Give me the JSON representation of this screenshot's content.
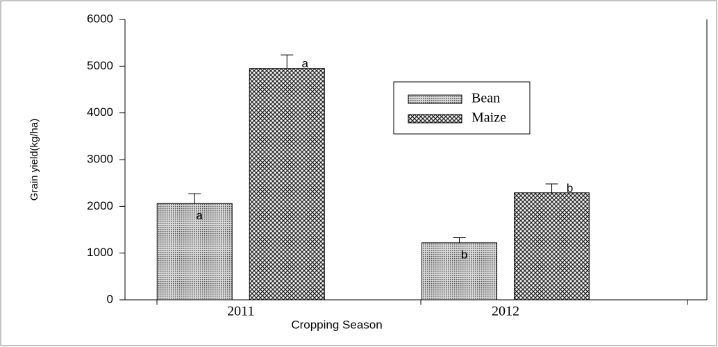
{
  "chart_data": {
    "type": "bar",
    "x_label": "Cropping Season",
    "y_label": "Grain yield(kg/ha)",
    "categories": [
      "2011",
      "2012"
    ],
    "series": [
      {
        "name": "Bean",
        "color": "#9a9a9a",
        "values": [
          2060,
          1220
        ],
        "errors": [
          210,
          110
        ],
        "letters": [
          "a",
          "b"
        ]
      },
      {
        "name": "Maize",
        "color": "#333333",
        "values": [
          4950,
          2290
        ],
        "errors": [
          290,
          190
        ],
        "letters": [
          "a",
          "b"
        ]
      }
    ],
    "ylim": [
      0,
      6000
    ],
    "yticks": [
      0,
      1000,
      2000,
      3000,
      4000,
      5000,
      6000
    ]
  }
}
